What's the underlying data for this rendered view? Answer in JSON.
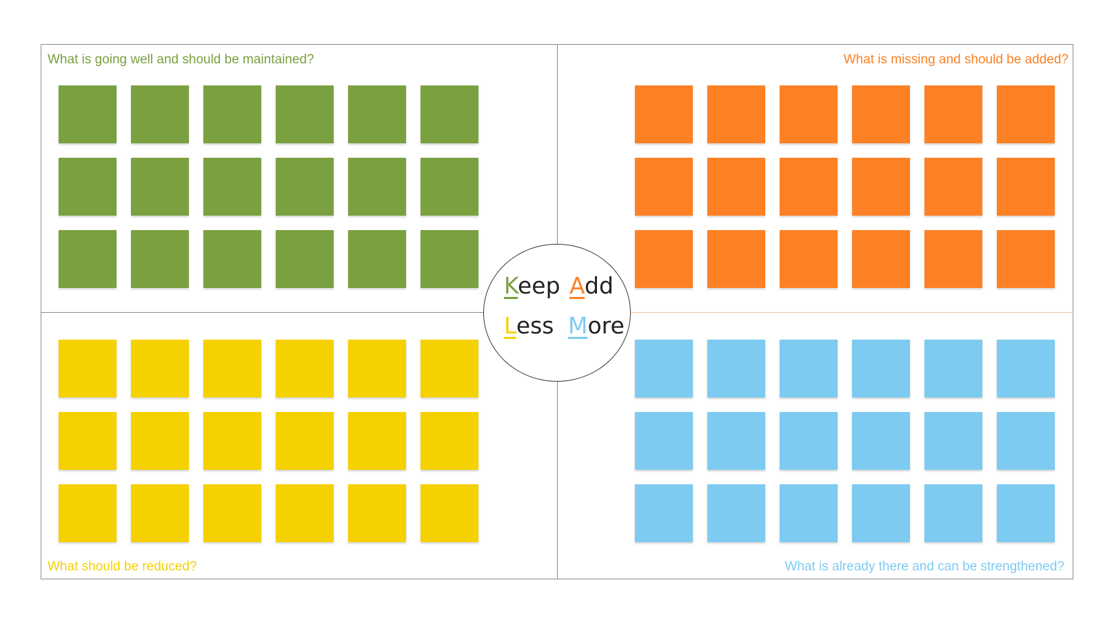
{
  "colors": {
    "keep": "#7aa040",
    "add": "#fd8124",
    "less": "#f5d100",
    "more": "#7dcbf1"
  },
  "quadrants": {
    "keep": {
      "question": "What is going well and should be maintained?",
      "notes_rows": 3,
      "notes_cols": 6
    },
    "add": {
      "question": "What is missing and should be added?",
      "notes_rows": 3,
      "notes_cols": 6
    },
    "less": {
      "question": "What should be reduced?",
      "notes_rows": 3,
      "notes_cols": 6
    },
    "more": {
      "question": "What is already there and can be strengthened?",
      "notes_rows": 3,
      "notes_cols": 6
    }
  },
  "center": {
    "keep": {
      "initial": "K",
      "rest": "eep"
    },
    "add": {
      "initial": "A",
      "rest": "dd"
    },
    "less": {
      "initial": "L",
      "rest": "ess"
    },
    "more": {
      "initial": "M",
      "rest": "ore"
    }
  }
}
